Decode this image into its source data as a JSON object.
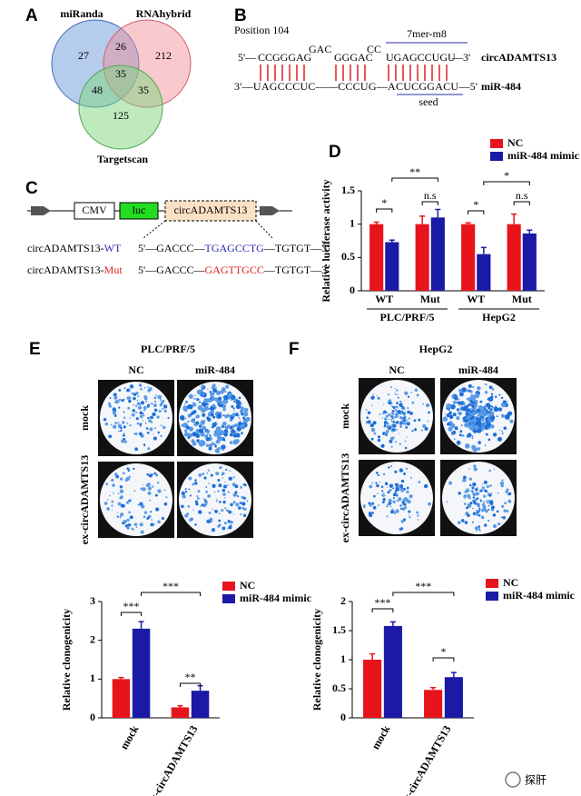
{
  "panel_labels": [
    "A",
    "B",
    "C",
    "D",
    "E",
    "F"
  ],
  "venn": {
    "sets": [
      "miRanda",
      "RNAhybrid",
      "Targetscan"
    ],
    "regions": [
      27,
      26,
      212,
      35,
      48,
      35,
      125
    ]
  },
  "sequence": {
    "position": "Position 104",
    "bulges": [
      "GAC",
      "CC"
    ],
    "site_label": "7mer-m8",
    "top_strand": [
      "5'—",
      "CCGGGAG",
      "GGGAC",
      "UGAGCCUGU",
      "—3'"
    ],
    "top_name": "circADAMTS13",
    "bottom_strand": "3'—UAGCCCUC——CCCUG—ACUCGGACU—5'",
    "bottom_name": "miR-484",
    "seed_label": "seed"
  },
  "construct": {
    "elements": [
      "CMV",
      "luc",
      "circADAMTS13"
    ],
    "rows": [
      {
        "name": "circADAMTS13-",
        "variant": "WT",
        "seq": [
          "5'—GACCC—",
          "TGAGCCTG",
          "—TGTGT—3'"
        ]
      },
      {
        "name": "circADAMTS13-",
        "variant": "Mut",
        "seq": [
          "5'—GACCC—",
          "GAGTTGCC",
          "—TGTGT—3'"
        ]
      }
    ]
  },
  "colony": [
    {
      "title": "PLC/PRF/5",
      "columns": [
        "NC",
        "miR-484"
      ],
      "rows": [
        "mock",
        "ex-circADAMTS13"
      ]
    },
    {
      "title": "HepG2",
      "columns": [
        "NC",
        "miR-484"
      ],
      "rows": [
        "mock",
        "ex-circADAMTS13"
      ]
    }
  ],
  "watermark": "探肝",
  "chart_data": [
    {
      "type": "bar",
      "y_label": "Relative luciferase activity",
      "categories": [
        "WT",
        "Mut",
        "WT",
        "Mut"
      ],
      "group_labels": [
        "PLC/PRF/5",
        "HepG2"
      ],
      "series": [
        {
          "name": "NC",
          "color": "#e8141c",
          "values": [
            1.0,
            1.0,
            1.0,
            1.0
          ],
          "errors": [
            0.03,
            0.12,
            0.02,
            0.15
          ]
        },
        {
          "name": "miR-484 mimic",
          "color": "#1a1aa6",
          "values": [
            0.73,
            1.1,
            0.55,
            0.86
          ],
          "errors": [
            0.03,
            0.12,
            0.1,
            0.05
          ]
        }
      ],
      "ylim": [
        0,
        1.5
      ],
      "yticks": [
        0,
        0.5,
        1,
        1.5
      ],
      "annotations": [
        "*",
        "n.s",
        "**",
        "*",
        "n.s",
        "*"
      ]
    },
    {
      "type": "bar",
      "y_label": "Relative clonogenicity",
      "categories": [
        "mock",
        "ex-circADAMTS13"
      ],
      "series": [
        {
          "name": "NC",
          "color": "#e8141c",
          "values": [
            1.0,
            0.27
          ],
          "errors": [
            0.04,
            0.04
          ]
        },
        {
          "name": "miR-484 mimic",
          "color": "#1a1aa6",
          "values": [
            2.3,
            0.7
          ],
          "errors": [
            0.18,
            0.13
          ]
        }
      ],
      "ylim": [
        0,
        3
      ],
      "yticks": [
        0,
        1,
        2,
        3
      ],
      "annotations": [
        "***",
        "**",
        "***"
      ]
    },
    {
      "type": "bar",
      "y_label": "Relative clonogenicity",
      "categories": [
        "mock",
        "ex-circADAMTS13"
      ],
      "series": [
        {
          "name": "NC",
          "color": "#e8141c",
          "values": [
            1.0,
            0.48
          ],
          "errors": [
            0.1,
            0.04
          ]
        },
        {
          "name": "miR-484 mimic",
          "color": "#1a1aa6",
          "values": [
            1.58,
            0.7
          ],
          "errors": [
            0.07,
            0.08
          ]
        }
      ],
      "ylim": [
        0,
        2
      ],
      "yticks": [
        0,
        0.5,
        1,
        1.5,
        2
      ],
      "annotations": [
        "***",
        "*",
        "***"
      ]
    }
  ]
}
